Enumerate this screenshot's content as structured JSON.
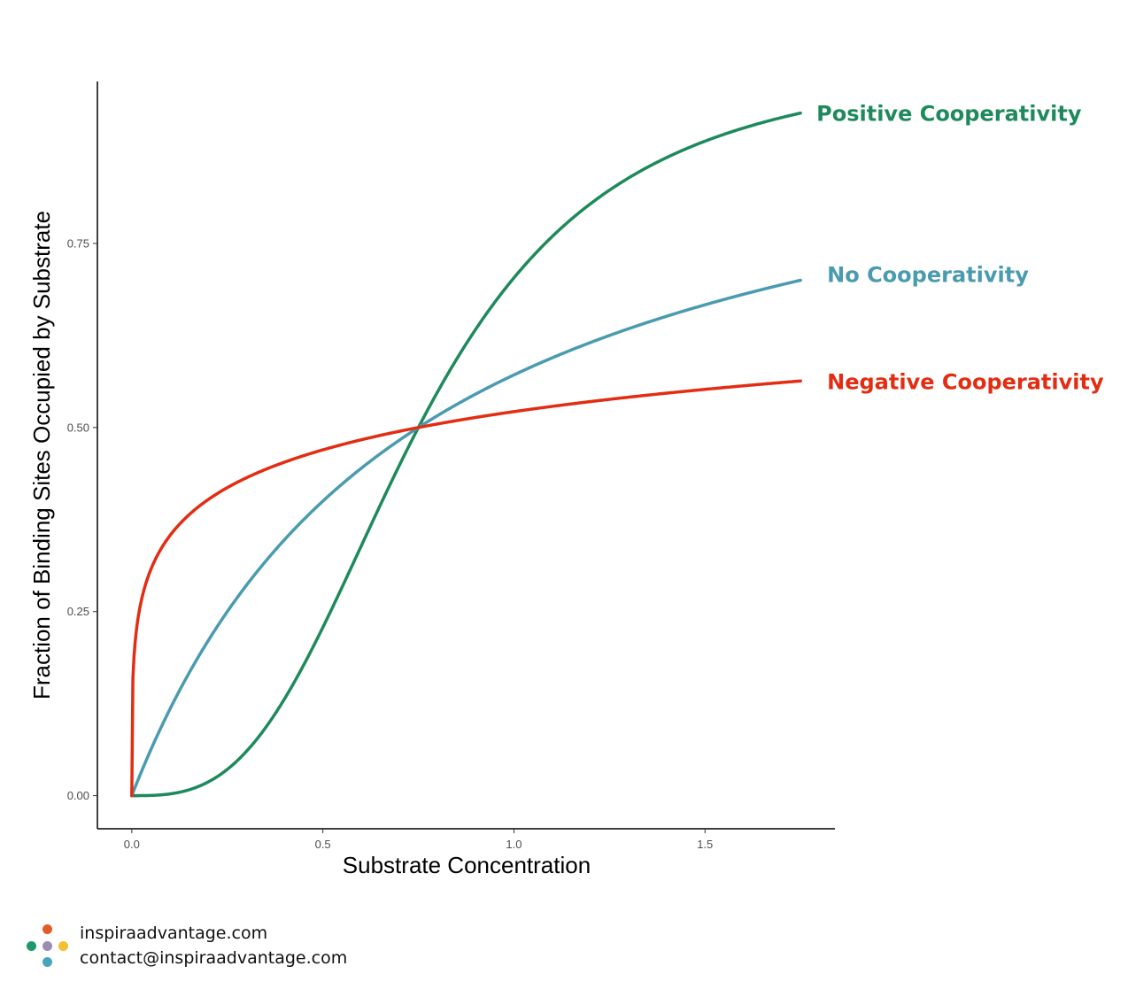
{
  "chart_data": {
    "type": "line",
    "title": "",
    "xlabel": "Substrate Concentration",
    "ylabel": "Fraction of Binding Sites Occupied by Substrate",
    "xlim": [
      -0.09,
      1.84
    ],
    "ylim": [
      -0.045,
      0.97
    ],
    "x_ticks": [
      0.0,
      0.5,
      1.0,
      1.5
    ],
    "x_tick_labels": [
      "0.0",
      "0.5",
      "1.0",
      "1.5"
    ],
    "y_ticks": [
      0.0,
      0.25,
      0.5,
      0.75
    ],
    "y_tick_labels": [
      "0.00",
      "0.25",
      "0.50",
      "0.75"
    ],
    "grid": false,
    "legend": "direct labels at line ends",
    "model": "fraction = x^n / (K^n + x^n)",
    "x_range": [
      0.0,
      1.75
    ],
    "series": [
      {
        "name": "Positive Cooperativity",
        "color": "#1e8a5c",
        "K": 0.75,
        "n": 3
      },
      {
        "name": "No Cooperativity",
        "color": "#4a9bb0",
        "K": 0.75,
        "n": 1
      },
      {
        "name": "Negative Cooperativity",
        "color": "#e32d12",
        "K": 0.75,
        "n": 0.3
      }
    ]
  },
  "footer": {
    "website": "inspiraadvantage.com",
    "email": "contact@inspiraadvantage.com",
    "logo_colors": [
      "#e25b2b",
      "#9b8bb5",
      "#f2c12e",
      "#1e9a6a",
      "#47a6bd"
    ]
  }
}
